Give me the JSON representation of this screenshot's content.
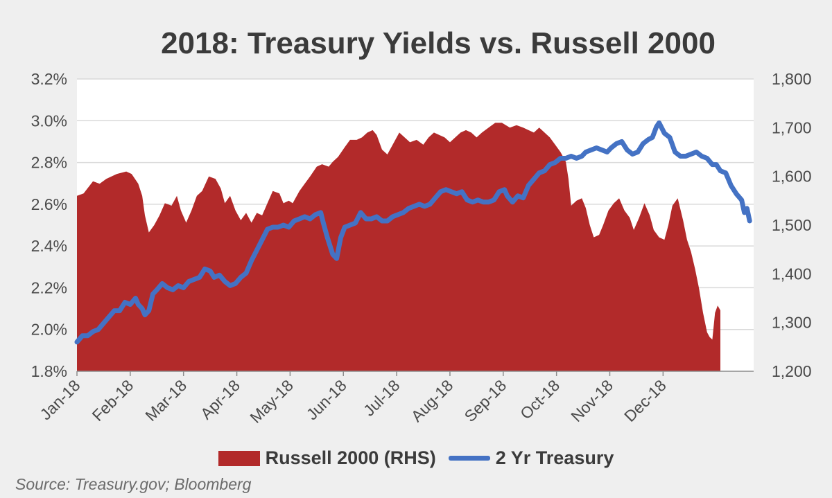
{
  "chart_data": {
    "type": "area",
    "title": "2018: Treasury Yields vs. Russell 2000",
    "source": "Source: Treasury.gov; Bloomberg",
    "x_labels": [
      "Jan-18",
      "Feb-18",
      "Mar-18",
      "Apr-18",
      "May-18",
      "Jun-18",
      "Jul-18",
      "Aug-18",
      "Sep-18",
      "Oct-18",
      "Nov-18",
      "Dec-18"
    ],
    "y_left": {
      "min": 1.8,
      "max": 3.2,
      "ticks": [
        "1.8%",
        "2.0%",
        "2.2%",
        "2.4%",
        "2.6%",
        "2.8%",
        "3.0%",
        "3.2%"
      ]
    },
    "y_right": {
      "min": 1200,
      "max": 1800,
      "ticks": [
        "1,200",
        "1,300",
        "1,400",
        "1,500",
        "1,600",
        "1,700",
        "1,800"
      ]
    },
    "grid": true,
    "legend_position": "bottom",
    "series": [
      {
        "name": "Russell 2000 (RHS)",
        "kind": "area",
        "axis": "right",
        "color": "#b22a2a",
        "points": [
          [
            0,
            1560
          ],
          [
            0.25,
            1565
          ],
          [
            0.6,
            1590
          ],
          [
            0.85,
            1585
          ],
          [
            1.1,
            1595
          ],
          [
            1.5,
            1605
          ],
          [
            1.85,
            1610
          ],
          [
            2.05,
            1605
          ],
          [
            2.3,
            1585
          ],
          [
            2.45,
            1560
          ],
          [
            2.55,
            1520
          ],
          [
            2.7,
            1485
          ],
          [
            2.9,
            1500
          ],
          [
            3.1,
            1520
          ],
          [
            3.3,
            1545
          ],
          [
            3.55,
            1540
          ],
          [
            3.75,
            1560
          ],
          [
            3.9,
            1530
          ],
          [
            4.1,
            1505
          ],
          [
            4.3,
            1530
          ],
          [
            4.5,
            1560
          ],
          [
            4.7,
            1570
          ],
          [
            4.95,
            1600
          ],
          [
            5.2,
            1595
          ],
          [
            5.4,
            1575
          ],
          [
            5.55,
            1545
          ],
          [
            5.75,
            1560
          ],
          [
            5.95,
            1530
          ],
          [
            6.15,
            1510
          ],
          [
            6.35,
            1525
          ],
          [
            6.55,
            1505
          ],
          [
            6.75,
            1525
          ],
          [
            6.95,
            1520
          ],
          [
            7.15,
            1545
          ],
          [
            7.35,
            1570
          ],
          [
            7.6,
            1565
          ],
          [
            7.75,
            1545
          ],
          [
            7.95,
            1550
          ],
          [
            8.1,
            1545
          ],
          [
            8.35,
            1570
          ],
          [
            8.55,
            1585
          ],
          [
            8.75,
            1600
          ],
          [
            9.0,
            1620
          ],
          [
            9.2,
            1625
          ],
          [
            9.45,
            1620
          ],
          [
            9.6,
            1630
          ],
          [
            9.8,
            1640
          ],
          [
            10.05,
            1660
          ],
          [
            10.25,
            1675
          ],
          [
            10.5,
            1675
          ],
          [
            10.7,
            1680
          ],
          [
            10.9,
            1690
          ],
          [
            11.1,
            1695
          ],
          [
            11.25,
            1685
          ],
          [
            11.45,
            1655
          ],
          [
            11.65,
            1645
          ],
          [
            11.9,
            1670
          ],
          [
            12.1,
            1690
          ],
          [
            12.3,
            1680
          ],
          [
            12.5,
            1670
          ],
          [
            12.75,
            1675
          ],
          [
            13.0,
            1665
          ],
          [
            13.2,
            1680
          ],
          [
            13.4,
            1690
          ],
          [
            13.6,
            1685
          ],
          [
            13.8,
            1680
          ],
          [
            14.0,
            1670
          ],
          [
            14.2,
            1680
          ],
          [
            14.4,
            1690
          ],
          [
            14.6,
            1695
          ],
          [
            14.8,
            1690
          ],
          [
            15.0,
            1680
          ],
          [
            15.2,
            1690
          ],
          [
            15.45,
            1700
          ],
          [
            15.7,
            1710
          ],
          [
            15.95,
            1710
          ],
          [
            16.1,
            1705
          ],
          [
            16.25,
            1700
          ],
          [
            16.5,
            1705
          ],
          [
            16.75,
            1700
          ],
          [
            16.95,
            1695
          ],
          [
            17.15,
            1690
          ],
          [
            17.35,
            1700
          ],
          [
            17.55,
            1690
          ],
          [
            17.75,
            1680
          ],
          [
            17.95,
            1665
          ],
          [
            18.15,
            1650
          ],
          [
            18.35,
            1630
          ],
          [
            18.45,
            1595
          ],
          [
            18.55,
            1540
          ],
          [
            18.75,
            1550
          ],
          [
            18.95,
            1555
          ],
          [
            19.1,
            1535
          ],
          [
            19.25,
            1500
          ],
          [
            19.4,
            1475
          ],
          [
            19.6,
            1480
          ],
          [
            19.75,
            1500
          ],
          [
            19.95,
            1530
          ],
          [
            20.15,
            1545
          ],
          [
            20.35,
            1555
          ],
          [
            20.55,
            1530
          ],
          [
            20.75,
            1515
          ],
          [
            20.9,
            1490
          ],
          [
            21.1,
            1515
          ],
          [
            21.3,
            1545
          ],
          [
            21.5,
            1520
          ],
          [
            21.65,
            1490
          ],
          [
            21.85,
            1475
          ],
          [
            22.05,
            1470
          ],
          [
            22.2,
            1500
          ],
          [
            22.35,
            1540
          ],
          [
            22.55,
            1555
          ],
          [
            22.75,
            1510
          ],
          [
            22.9,
            1470
          ],
          [
            23.05,
            1445
          ],
          [
            23.2,
            1410
          ],
          [
            23.35,
            1370
          ],
          [
            23.5,
            1320
          ],
          [
            23.65,
            1280
          ],
          [
            23.75,
            1270
          ],
          [
            23.85,
            1265
          ],
          [
            23.95,
            1320
          ],
          [
            24.05,
            1335
          ],
          [
            24.15,
            1325
          ]
        ]
      },
      {
        "name": "2 Yr Treasury",
        "kind": "line",
        "axis": "left",
        "color": "#4472c4",
        "points": [
          [
            0,
            1.94
          ],
          [
            0.2,
            1.97
          ],
          [
            0.4,
            1.97
          ],
          [
            0.6,
            1.99
          ],
          [
            0.8,
            2.0
          ],
          [
            1.0,
            2.03
          ],
          [
            1.2,
            2.06
          ],
          [
            1.4,
            2.09
          ],
          [
            1.6,
            2.09
          ],
          [
            1.8,
            2.13
          ],
          [
            2.0,
            2.12
          ],
          [
            2.2,
            2.15
          ],
          [
            2.3,
            2.12
          ],
          [
            2.45,
            2.1
          ],
          [
            2.55,
            2.07
          ],
          [
            2.7,
            2.09
          ],
          [
            2.85,
            2.17
          ],
          [
            3.0,
            2.19
          ],
          [
            3.2,
            2.22
          ],
          [
            3.4,
            2.2
          ],
          [
            3.6,
            2.19
          ],
          [
            3.8,
            2.21
          ],
          [
            4.0,
            2.2
          ],
          [
            4.2,
            2.23
          ],
          [
            4.4,
            2.24
          ],
          [
            4.6,
            2.25
          ],
          [
            4.8,
            2.29
          ],
          [
            5.0,
            2.28
          ],
          [
            5.15,
            2.25
          ],
          [
            5.35,
            2.26
          ],
          [
            5.55,
            2.23
          ],
          [
            5.75,
            2.21
          ],
          [
            5.95,
            2.22
          ],
          [
            6.15,
            2.25
          ],
          [
            6.35,
            2.27
          ],
          [
            6.55,
            2.33
          ],
          [
            6.75,
            2.38
          ],
          [
            6.95,
            2.43
          ],
          [
            7.15,
            2.48
          ],
          [
            7.35,
            2.49
          ],
          [
            7.55,
            2.49
          ],
          [
            7.75,
            2.5
          ],
          [
            7.95,
            2.49
          ],
          [
            8.15,
            2.52
          ],
          [
            8.35,
            2.53
          ],
          [
            8.55,
            2.54
          ],
          [
            8.75,
            2.53
          ],
          [
            8.95,
            2.55
          ],
          [
            9.15,
            2.56
          ],
          [
            9.25,
            2.51
          ],
          [
            9.4,
            2.44
          ],
          [
            9.6,
            2.36
          ],
          [
            9.75,
            2.34
          ],
          [
            9.9,
            2.44
          ],
          [
            10.05,
            2.49
          ],
          [
            10.25,
            2.5
          ],
          [
            10.45,
            2.51
          ],
          [
            10.65,
            2.56
          ],
          [
            10.85,
            2.53
          ],
          [
            11.05,
            2.53
          ],
          [
            11.25,
            2.54
          ],
          [
            11.45,
            2.52
          ],
          [
            11.65,
            2.52
          ],
          [
            11.85,
            2.54
          ],
          [
            12.05,
            2.55
          ],
          [
            12.25,
            2.56
          ],
          [
            12.45,
            2.58
          ],
          [
            12.65,
            2.59
          ],
          [
            12.85,
            2.6
          ],
          [
            13.05,
            2.59
          ],
          [
            13.25,
            2.6
          ],
          [
            13.45,
            2.63
          ],
          [
            13.65,
            2.66
          ],
          [
            13.85,
            2.67
          ],
          [
            14.05,
            2.66
          ],
          [
            14.25,
            2.65
          ],
          [
            14.45,
            2.66
          ],
          [
            14.65,
            2.62
          ],
          [
            14.85,
            2.61
          ],
          [
            15.05,
            2.62
          ],
          [
            15.25,
            2.61
          ],
          [
            15.45,
            2.61
          ],
          [
            15.65,
            2.62
          ],
          [
            15.85,
            2.66
          ],
          [
            16.05,
            2.67
          ],
          [
            16.15,
            2.64
          ],
          [
            16.35,
            2.61
          ],
          [
            16.55,
            2.64
          ],
          [
            16.75,
            2.63
          ],
          [
            16.95,
            2.69
          ],
          [
            17.15,
            2.72
          ],
          [
            17.35,
            2.75
          ],
          [
            17.55,
            2.76
          ],
          [
            17.75,
            2.79
          ],
          [
            17.95,
            2.8
          ],
          [
            18.15,
            2.82
          ],
          [
            18.35,
            2.82
          ],
          [
            18.55,
            2.83
          ],
          [
            18.75,
            2.82
          ],
          [
            18.95,
            2.83
          ],
          [
            19.1,
            2.85
          ],
          [
            19.3,
            2.86
          ],
          [
            19.5,
            2.87
          ],
          [
            19.7,
            2.86
          ],
          [
            19.9,
            2.85
          ],
          [
            20.05,
            2.87
          ],
          [
            20.25,
            2.89
          ],
          [
            20.45,
            2.9
          ],
          [
            20.65,
            2.86
          ],
          [
            20.85,
            2.84
          ],
          [
            21.05,
            2.85
          ],
          [
            21.25,
            2.89
          ],
          [
            21.45,
            2.91
          ],
          [
            21.6,
            2.92
          ],
          [
            21.75,
            2.97
          ],
          [
            21.85,
            2.99
          ],
          [
            22.05,
            2.94
          ],
          [
            22.25,
            2.92
          ],
          [
            22.45,
            2.85
          ],
          [
            22.65,
            2.83
          ],
          [
            22.85,
            2.83
          ],
          [
            23.05,
            2.84
          ],
          [
            23.25,
            2.85
          ],
          [
            23.45,
            2.83
          ],
          [
            23.65,
            2.82
          ],
          [
            23.85,
            2.79
          ],
          [
            24.0,
            2.79
          ],
          [
            24.15,
            2.76
          ],
          [
            24.35,
            2.75
          ],
          [
            24.55,
            2.69
          ],
          [
            24.75,
            2.65
          ],
          [
            24.95,
            2.62
          ],
          [
            25.05,
            2.56
          ],
          [
            25.15,
            2.58
          ],
          [
            25.25,
            2.52
          ]
        ]
      }
    ]
  }
}
